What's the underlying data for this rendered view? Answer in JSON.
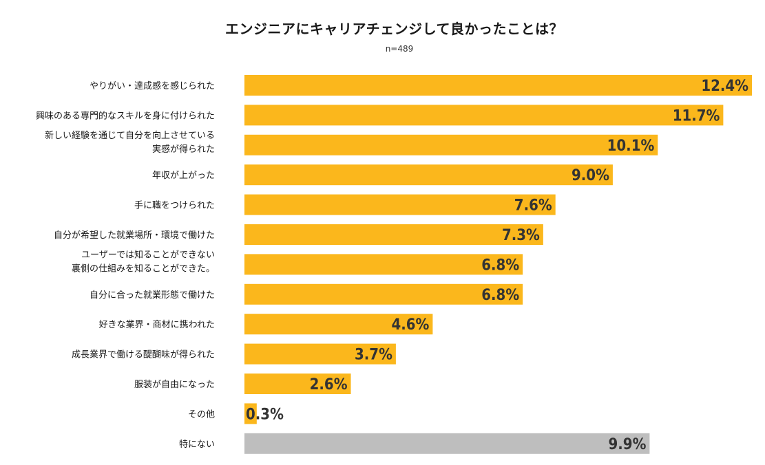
{
  "chart_data": {
    "type": "bar",
    "orientation": "horizontal",
    "title": "エンジニアにキャリアチェンジして良かったことは？",
    "subtitle": "n=489",
    "unit": "%",
    "xlim": [
      0,
      12.4
    ],
    "categories": [
      "やりがい・達成感を感じられた",
      "興味のある専門的なスキルを身に付けられた",
      "新しい経験を通じて自分を向上させている\n実感が得られた",
      "年収が上がった",
      "手に職をつけられた",
      "自分が希望した就業場所・環境で働けた",
      "ユーザーでは知ることができない\n裏側の仕組みを知ることができた。",
      "自分に合った就業形態で働けた",
      "好きな業界・商材に携われた",
      "成長業界で働ける醍醐味が得られた",
      "服装が自由になった",
      "その他",
      "特にない"
    ],
    "values": [
      12.4,
      11.7,
      10.1,
      9.0,
      7.6,
      7.3,
      6.8,
      6.8,
      4.6,
      3.7,
      2.6,
      0.3,
      9.9
    ],
    "value_labels": [
      "12.4%",
      "11.7%",
      "10.1%",
      "9.0%",
      "7.6%",
      "7.3%",
      "6.8%",
      "6.8%",
      "4.6%",
      "3.7%",
      "2.6%",
      "0.3%",
      "9.9%"
    ],
    "colors": {
      "bar": "#FBB71C",
      "bar_none": "#BEBEBE"
    }
  }
}
